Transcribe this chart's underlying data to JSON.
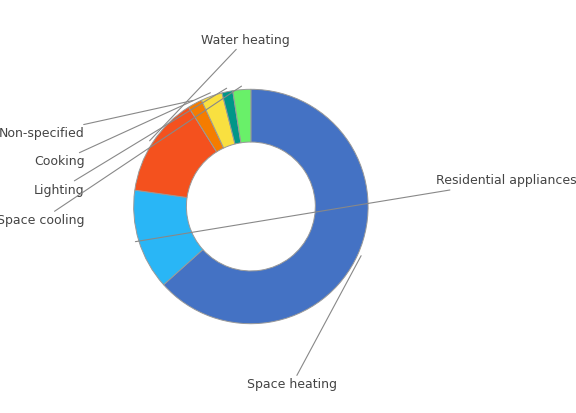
{
  "labels": [
    "Space heating",
    "Residential appliances",
    "Water heating",
    "Non-specified",
    "Cooking",
    "Lighting",
    "Space cooling"
  ],
  "values": [
    64,
    14,
    14,
    2,
    3,
    1.5,
    2.5
  ],
  "colors": [
    "#4472C4",
    "#29B6F6",
    "#F4511E",
    "#F57C00",
    "#F9E040",
    "#009688",
    "#69F069"
  ],
  "wedge_edge_color": "#999999",
  "wedge_linewidth": 0.7,
  "donut_width": 0.45,
  "label_font_size": 9,
  "label_color": "#444444",
  "annotation_line_color": "#888888",
  "background_color": "#FFFFFF",
  "label_positions": {
    "Space heating": [
      0.35,
      -1.52,
      "center"
    ],
    "Residential appliances": [
      1.58,
      0.22,
      "left"
    ],
    "Water heating": [
      -0.05,
      1.42,
      "center"
    ],
    "Non-specified": [
      -1.42,
      0.62,
      "right"
    ],
    "Cooking": [
      -1.42,
      0.38,
      "right"
    ],
    "Lighting": [
      -1.42,
      0.14,
      "right"
    ],
    "Space cooling": [
      -1.42,
      -0.12,
      "right"
    ]
  }
}
